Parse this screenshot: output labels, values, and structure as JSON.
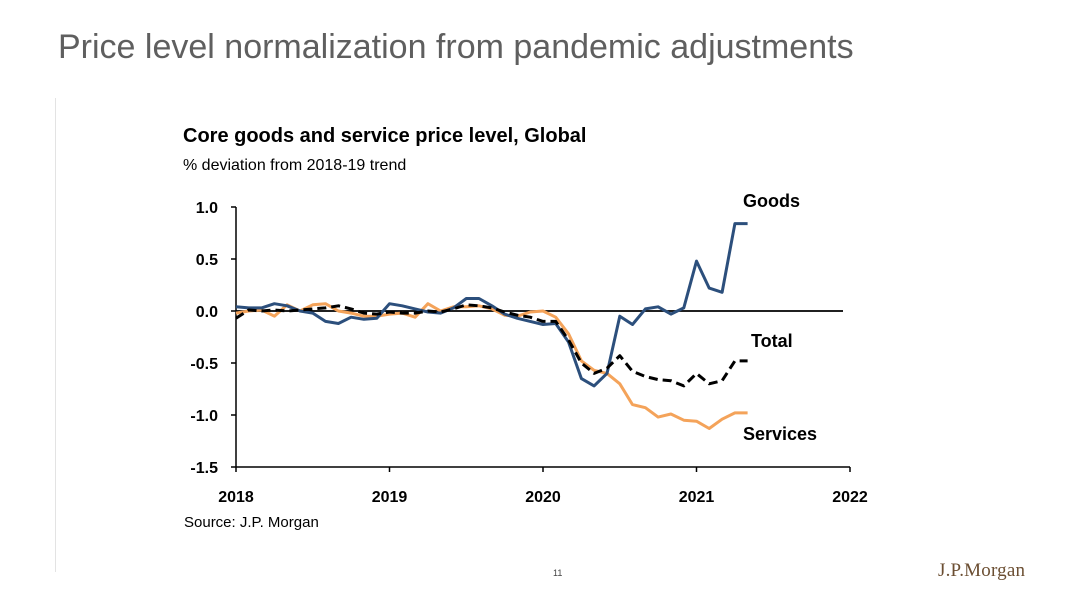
{
  "slide": {
    "title": "Price level normalization from pandemic adjustments",
    "page_number": "11",
    "logo_text": "J.P.Morgan"
  },
  "colors": {
    "goods": "#2c4f7c",
    "services": "#f4a35a",
    "total": "#000000",
    "title": "#5f5f5f",
    "logo": "#6b4e32"
  },
  "chart_data": {
    "type": "line",
    "title": "Core goods and service price level, Global",
    "subtitle": "% deviation from 2018-19 trend",
    "source": "Source: J.P. Morgan",
    "xlabel": "",
    "ylabel": "",
    "x_ticks": [
      "2018",
      "2019",
      "2020",
      "2021",
      "2022"
    ],
    "y_ticks": [
      "1.0",
      "0.5",
      "0.0",
      "-0.5",
      "-1.0",
      "-1.5"
    ],
    "xlim": [
      2018.0,
      2022.0
    ],
    "ylim": [
      -1.5,
      1.0
    ],
    "grid": false,
    "legend": "inline labels at line ends",
    "series": [
      {
        "name": "Goods",
        "style": "solid",
        "x": [
          2018.0,
          2018.083,
          2018.167,
          2018.25,
          2018.333,
          2018.417,
          2018.5,
          2018.583,
          2018.667,
          2018.75,
          2018.833,
          2018.917,
          2019.0,
          2019.083,
          2019.167,
          2019.25,
          2019.333,
          2019.417,
          2019.5,
          2019.583,
          2019.667,
          2019.75,
          2019.833,
          2019.917,
          2020.0,
          2020.083,
          2020.167,
          2020.25,
          2020.333,
          2020.417,
          2020.5,
          2020.583,
          2020.667,
          2020.75,
          2020.833,
          2020.917,
          2021.0,
          2021.083,
          2021.167,
          2021.25,
          2021.333
        ],
        "values": [
          0.04,
          0.03,
          0.03,
          0.07,
          0.05,
          0.0,
          -0.02,
          -0.1,
          -0.12,
          -0.06,
          -0.08,
          -0.07,
          0.07,
          0.05,
          0.02,
          -0.01,
          -0.02,
          0.03,
          0.12,
          0.12,
          0.05,
          -0.03,
          -0.07,
          -0.1,
          -0.13,
          -0.12,
          -0.3,
          -0.65,
          -0.72,
          -0.6,
          -0.05,
          -0.13,
          0.02,
          0.04,
          -0.03,
          0.03,
          0.48,
          0.22,
          0.18,
          0.84,
          0.84
        ]
      },
      {
        "name": "Services",
        "style": "solid",
        "x": [
          2018.0,
          2018.083,
          2018.167,
          2018.25,
          2018.333,
          2018.417,
          2018.5,
          2018.583,
          2018.667,
          2018.75,
          2018.833,
          2018.917,
          2019.0,
          2019.083,
          2019.167,
          2019.25,
          2019.333,
          2019.417,
          2019.5,
          2019.583,
          2019.667,
          2019.75,
          2019.833,
          2019.917,
          2020.0,
          2020.083,
          2020.167,
          2020.25,
          2020.333,
          2020.417,
          2020.5,
          2020.583,
          2020.667,
          2020.75,
          2020.833,
          2020.917,
          2021.0,
          2021.083,
          2021.167,
          2021.25,
          2021.333
        ],
        "values": [
          -0.02,
          0.0,
          0.01,
          -0.05,
          0.06,
          0.0,
          0.06,
          0.07,
          0.0,
          -0.02,
          -0.05,
          -0.05,
          -0.03,
          -0.02,
          -0.06,
          0.07,
          0.0,
          0.04,
          0.04,
          0.05,
          0.02,
          -0.04,
          -0.05,
          -0.01,
          0.0,
          -0.06,
          -0.22,
          -0.48,
          -0.57,
          -0.6,
          -0.7,
          -0.9,
          -0.93,
          -1.02,
          -0.99,
          -1.05,
          -1.06,
          -1.13,
          -1.04,
          -0.98,
          -0.98
        ]
      },
      {
        "name": "Total",
        "style": "dashed",
        "x": [
          2018.0,
          2018.083,
          2018.167,
          2018.25,
          2018.333,
          2018.417,
          2018.5,
          2018.583,
          2018.667,
          2018.75,
          2018.833,
          2018.917,
          2019.0,
          2019.083,
          2019.167,
          2019.25,
          2019.333,
          2019.417,
          2019.5,
          2019.583,
          2019.667,
          2019.75,
          2019.833,
          2019.917,
          2020.0,
          2020.083,
          2020.167,
          2020.25,
          2020.333,
          2020.417,
          2020.5,
          2020.583,
          2020.667,
          2020.75,
          2020.833,
          2020.917,
          2021.0,
          2021.083,
          2021.167,
          2021.25,
          2021.333
        ],
        "values": [
          -0.07,
          0.01,
          0.0,
          0.01,
          0.0,
          0.01,
          0.02,
          0.03,
          0.05,
          0.02,
          -0.02,
          -0.03,
          -0.01,
          -0.02,
          -0.02,
          0.0,
          -0.01,
          0.02,
          0.06,
          0.05,
          0.03,
          -0.01,
          -0.04,
          -0.06,
          -0.1,
          -0.1,
          -0.28,
          -0.5,
          -0.6,
          -0.55,
          -0.43,
          -0.58,
          -0.63,
          -0.66,
          -0.67,
          -0.72,
          -0.6,
          -0.7,
          -0.67,
          -0.48,
          -0.48
        ]
      }
    ]
  }
}
